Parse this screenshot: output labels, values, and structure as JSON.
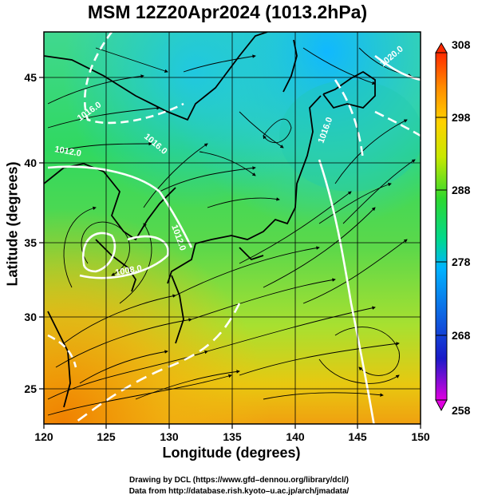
{
  "title": "MSM 12Z20Apr2024 (1013.2hPa)",
  "axes": {
    "xlabel": "Longitude (degrees)",
    "ylabel": "Latitude  (degrees)",
    "x_ticks": [
      "120",
      "125",
      "130",
      "135",
      "140",
      "145",
      "150"
    ],
    "y_ticks": [
      "25",
      "30",
      "35",
      "40",
      "45"
    ],
    "xlim": [
      120,
      150
    ],
    "ylim": [
      22.4,
      47.6
    ]
  },
  "colorbar": {
    "ticks": [
      "308",
      "298",
      "288",
      "278",
      "268",
      "258"
    ],
    "range": [
      258,
      308
    ],
    "colors": [
      "#e000e0",
      "#1a1ac8",
      "#00b4ff",
      "#00d890",
      "#2ed82e",
      "#c8e800",
      "#ffd200",
      "#ff8c00",
      "#ff2a00"
    ]
  },
  "contour_labels": [
    "1016.0",
    "1012.0",
    "1016.0",
    "1012.0",
    "1008.0",
    "1020.0",
    "1016.0"
  ],
  "credits": {
    "line1": "Drawing by DCL (https://www.gfd–dennou.org/library/dcl/)",
    "line2": "Data from http://database.rish.kyoto–u.ac.jp/arch/jmadata/"
  }
}
